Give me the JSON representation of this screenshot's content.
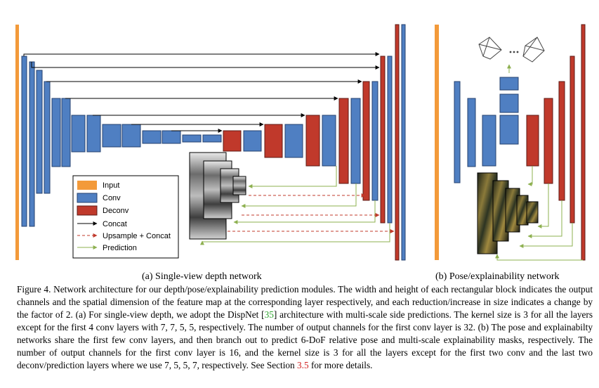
{
  "colors": {
    "input": "#f39a3a",
    "conv": "#4f7fc2",
    "deconv": "#c0392b",
    "concat_arrow": "#000000",
    "upsample_arrow": "#c0392b",
    "prediction_arrow": "#8db04f",
    "reference_link": "#2ea32e",
    "section_link": "#d01f1f"
  },
  "legend": {
    "items": [
      {
        "key": "input",
        "label": "Input"
      },
      {
        "key": "conv",
        "label": "Conv"
      },
      {
        "key": "deconv",
        "label": "Deconv"
      },
      {
        "key": "concat",
        "label": "Concat"
      },
      {
        "key": "upsample",
        "label": "Upsample + Concat"
      },
      {
        "key": "prediction",
        "label": "Prediction"
      }
    ]
  },
  "subcaptions": {
    "a": "(a) Single-view depth network",
    "b": "(b) Pose/explainability network"
  },
  "caption": {
    "label": "Figure 4.",
    "part1": "Network architecture for our depth/pose/explainability prediction modules. The width and height of each rectangular block indicates the output channels and the spatial dimension of the feature map at the corresponding layer respectively, and each reduction/increase in size indicates a change by the factor of 2. (a) For single-view depth, we adopt the DispNet [",
    "ref": "35",
    "part2": "] architecture with multi-scale side predictions. The kernel size is 3 for all the layers except for the first 4 conv layers with 7, 7, 5, 5, respectively. The number of output channels for the first conv layer is 32. (b) The pose and explainabilty networks share the first few conv layers, and then branch out to predict 6-DoF relative pose and multi-scale explainability masks, respectively. The number of output channels for the first conv layer is 16, and the kernel size is 3 for all the layers except for the first two conv and the last two deconv/prediction layers where we use 7, 5, 5, 7, respectively. See Section ",
    "section": "3.5",
    "part3": " for more details."
  }
}
